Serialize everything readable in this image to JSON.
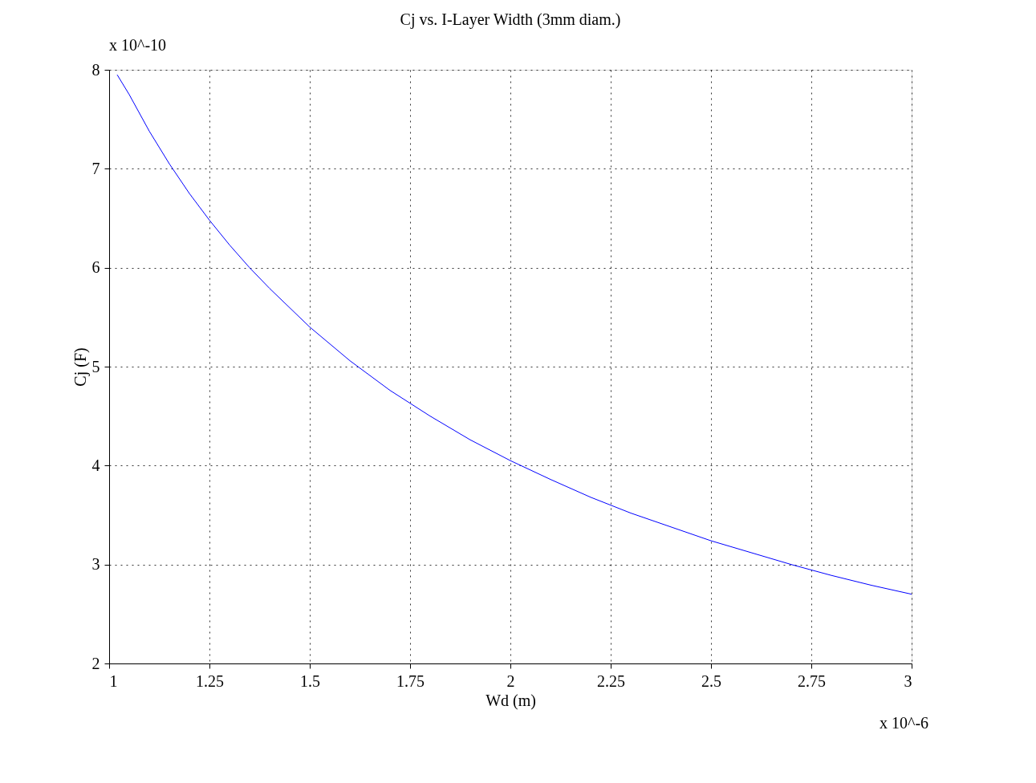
{
  "chart_data": {
    "type": "line",
    "title": "Cj vs. I-Layer Width (3mm diam.)",
    "xlabel": "Wd (m)",
    "ylabel": "Cj (F)",
    "annotations": [
      "x 10^-10",
      "x 10^-6"
    ],
    "x": [
      1.02,
      1.05,
      1.1,
      1.15,
      1.2,
      1.25,
      1.3,
      1.35,
      1.4,
      1.5,
      1.6,
      1.7,
      1.8,
      1.9,
      2.0,
      2.1,
      2.2,
      2.3,
      2.4,
      2.5,
      2.6,
      2.7,
      2.8,
      2.9,
      3.0
    ],
    "series": [
      {
        "color": "#0000ff",
        "values": [
          7.95,
          7.75,
          7.38,
          7.05,
          6.75,
          6.48,
          6.23,
          6.0,
          5.79,
          5.4,
          5.06,
          4.76,
          4.5,
          4.26,
          4.05,
          3.86,
          3.68,
          3.52,
          3.38,
          3.24,
          3.12,
          3.0,
          2.89,
          2.79,
          2.7
        ]
      }
    ],
    "xlim": [
      1,
      3
    ],
    "xticks": [
      1,
      1.25,
      1.5,
      1.75,
      2,
      2.25,
      2.5,
      2.75,
      3
    ],
    "ylim": [
      2,
      8
    ],
    "yticks": [
      2,
      3,
      4,
      5,
      6,
      7,
      8
    ],
    "grid": true,
    "marker": "none",
    "line_style": "solid"
  }
}
